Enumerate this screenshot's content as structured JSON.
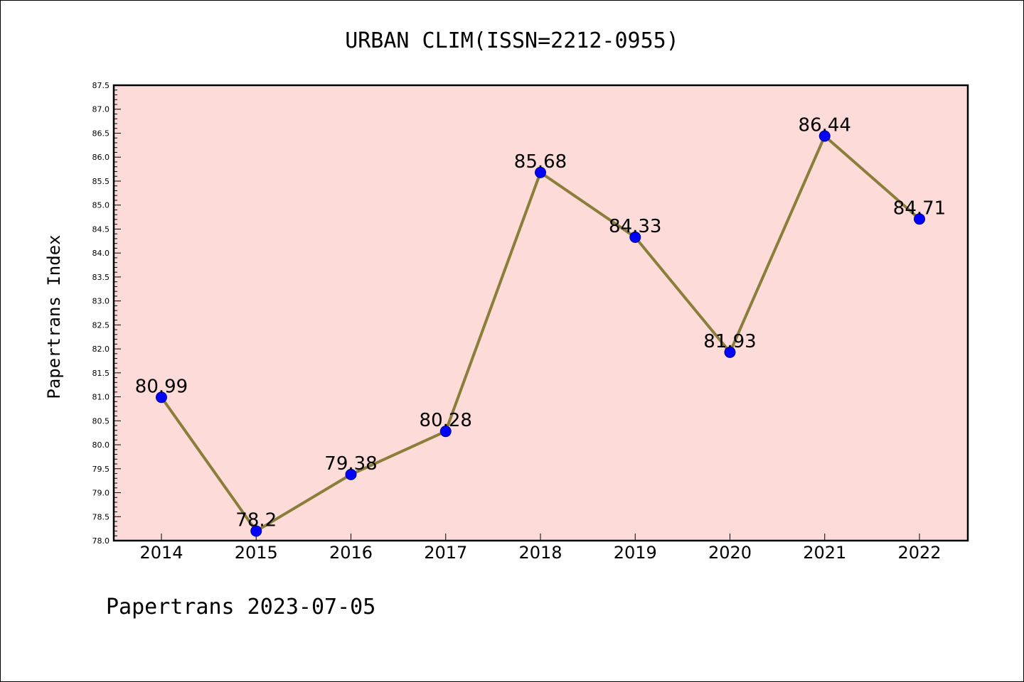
{
  "chart_data": {
    "type": "line",
    "title": "URBAN CLIM(ISSN=2212-0955)",
    "xlabel": "",
    "ylabel": "Papertrans Index",
    "footer": "Papertrans 2023-07-05",
    "categories": [
      "2014",
      "2015",
      "2016",
      "2017",
      "2018",
      "2019",
      "2020",
      "2021",
      "2022"
    ],
    "values": [
      80.99,
      78.2,
      79.38,
      80.28,
      85.68,
      84.33,
      81.93,
      86.44,
      84.71
    ],
    "data_labels": [
      "80.99",
      "78.2",
      "79.38",
      "80.28",
      "85.68",
      "84.33",
      "81.93",
      "86.44",
      "84.71"
    ],
    "ylim": [
      78.0,
      87.5
    ],
    "y_major_step": 0.5,
    "y_minor_step": 0.1,
    "grid": false,
    "colors": {
      "plot_background": "#fddbd8",
      "line": "#8b7d3a",
      "marker": "#0000ff",
      "marker_edge": "#00008b"
    }
  }
}
